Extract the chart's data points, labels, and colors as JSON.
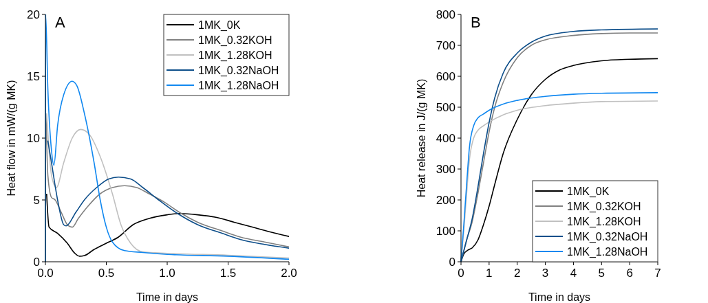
{
  "chart_data": [
    {
      "type": "line",
      "title": "A",
      "xlabel": "Time in days",
      "ylabel": "Heat flow in mW/(g MK)",
      "xlim": [
        0,
        2
      ],
      "xticks": [
        {
          "value": 0,
          "label": "0.0"
        },
        {
          "value": 0.5,
          "label": "0.5"
        },
        {
          "value": 1,
          "label": "1.0"
        },
        {
          "value": 1.5,
          "label": "1.5"
        },
        {
          "value": 2,
          "label": "2.0"
        }
      ],
      "ylim": [
        0,
        20
      ],
      "yticks": [
        0,
        5,
        10,
        15,
        20
      ],
      "grid": false,
      "legend": "top right",
      "series": [
        {
          "name": "1MK_0K",
          "color": "#000000",
          "x": [
            0.01,
            0.03,
            0.1,
            0.18,
            0.24,
            0.28,
            0.32,
            0.4,
            0.5,
            0.6,
            0.72,
            0.85,
            1.0,
            1.1,
            1.25,
            1.4,
            1.55,
            1.7,
            1.85,
            2.0
          ],
          "values": [
            5.5,
            2.8,
            2.3,
            1.5,
            0.7,
            0.45,
            0.5,
            1.0,
            1.5,
            2.0,
            3.0,
            3.5,
            3.8,
            3.9,
            3.8,
            3.6,
            3.2,
            2.8,
            2.4,
            2.05
          ]
        },
        {
          "name": "1MK_0.32KOH",
          "color": "#808080",
          "x": [
            0.005,
            0.02,
            0.05,
            0.08,
            0.13,
            0.18,
            0.22,
            0.27,
            0.35,
            0.45,
            0.55,
            0.65,
            0.75,
            0.85,
            0.98,
            1.1,
            1.25,
            1.45,
            1.6,
            1.8,
            2.0
          ],
          "values": [
            12,
            7,
            5.2,
            5.0,
            4.0,
            3.0,
            2.8,
            3.5,
            4.5,
            5.5,
            6.0,
            6.15,
            6.0,
            5.5,
            4.8,
            4.0,
            3.2,
            2.5,
            2.0,
            1.6,
            1.2
          ]
        },
        {
          "name": "1MK_1.28KOH",
          "color": "#c0c0c0",
          "x": [
            0.01,
            0.05,
            0.09,
            0.15,
            0.22,
            0.29,
            0.36,
            0.45,
            0.55,
            0.62,
            0.7,
            0.8,
            1.0,
            1.5,
            2.0
          ],
          "values": [
            12,
            7,
            6.0,
            8,
            10,
            10.7,
            10.3,
            8.5,
            5.5,
            3,
            1.5,
            0.8,
            0.68,
            0.53,
            0.3
          ]
        },
        {
          "name": "1MK_0.32NaOH",
          "color": "#0d4e8a",
          "x": [
            0.02,
            0.05,
            0.1,
            0.15,
            0.17,
            0.25,
            0.32,
            0.42,
            0.52,
            0.6,
            0.7,
            0.8,
            0.93,
            1.07,
            1.25,
            1.45,
            1.6,
            1.8,
            2.0
          ],
          "values": [
            9.8,
            8,
            5,
            3,
            2.9,
            4,
            5,
            6,
            6.7,
            6.85,
            6.7,
            6.0,
            5.0,
            4.0,
            3.0,
            2.3,
            1.8,
            1.4,
            1.1
          ]
        },
        {
          "name": "1MK_1.28NaOH",
          "color": "#1188f0",
          "x": [
            0,
            0.002,
            0.02,
            0.05,
            0.07,
            0.1,
            0.15,
            0.22,
            0.26,
            0.32,
            0.4,
            0.45,
            0.5,
            0.55,
            0.65,
            0.8,
            1.0,
            1.5,
            2.0
          ],
          "values": [
            0,
            20,
            14,
            9,
            7.8,
            11,
            13.5,
            14.6,
            14.2,
            12,
            8,
            5,
            2.8,
            1.6,
            0.9,
            0.75,
            0.6,
            0.45,
            0.2
          ]
        }
      ]
    },
    {
      "type": "line",
      "title": "B",
      "xlabel": "Time in days",
      "ylabel": "Heat release in J/(g MK)",
      "xlim": [
        0,
        7
      ],
      "xticks": [
        0,
        1,
        2,
        3,
        4,
        5,
        6,
        7
      ],
      "ylim": [
        0,
        800
      ],
      "yticks": [
        0,
        100,
        200,
        300,
        400,
        500,
        600,
        700,
        800
      ],
      "grid": false,
      "legend": "bottom right",
      "series": [
        {
          "name": "1MK_0K",
          "color": "#000000",
          "x": [
            0,
            0.1,
            0.25,
            0.4,
            0.6,
            0.8,
            1.0,
            1.2,
            1.5,
            2.0,
            2.5,
            3,
            3.5,
            4,
            5,
            6,
            7
          ],
          "values": [
            0,
            25,
            38,
            45,
            70,
            120,
            180,
            250,
            350,
            460,
            540,
            590,
            620,
            635,
            650,
            655,
            657
          ]
        },
        {
          "name": "1MK_0.32KOH",
          "color": "#808080",
          "x": [
            0,
            0.2,
            0.4,
            0.6,
            0.8,
            1.0,
            1.2,
            1.5,
            2,
            2.5,
            3,
            4,
            5,
            6,
            7
          ],
          "values": [
            0,
            70,
            130,
            220,
            320,
            420,
            500,
            580,
            660,
            700,
            718,
            732,
            738,
            740,
            740
          ]
        },
        {
          "name": "1MK_1.28KOH",
          "color": "#c0c0c0",
          "x": [
            0,
            0.1,
            0.2,
            0.3,
            0.45,
            0.6,
            0.8,
            1.0,
            1.5,
            2,
            3,
            4,
            5,
            7
          ],
          "values": [
            0,
            100,
            220,
            330,
            400,
            425,
            440,
            452,
            475,
            490,
            505,
            513,
            518,
            520
          ]
        },
        {
          "name": "1MK_0.32NaOH",
          "color": "#0d4e8a",
          "x": [
            0,
            0.2,
            0.4,
            0.6,
            0.8,
            1.0,
            1.2,
            1.5,
            2,
            2.5,
            3,
            4,
            5,
            7
          ],
          "values": [
            0,
            70,
            140,
            240,
            350,
            450,
            530,
            610,
            675,
            710,
            730,
            745,
            750,
            753
          ]
        },
        {
          "name": "1MK_1.28NaOH",
          "color": "#1188f0",
          "x": [
            0,
            0.1,
            0.2,
            0.3,
            0.45,
            0.6,
            0.8,
            1.0,
            1.5,
            2,
            3,
            4,
            5,
            7
          ],
          "values": [
            0,
            120,
            250,
            370,
            440,
            465,
            478,
            490,
            510,
            522,
            535,
            542,
            545,
            547
          ]
        }
      ]
    }
  ]
}
